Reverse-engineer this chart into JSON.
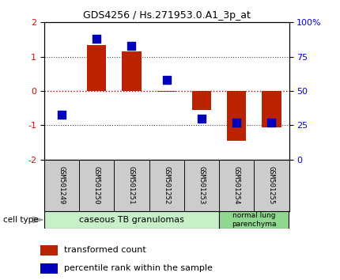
{
  "title": "GDS4256 / Hs.271953.0.A1_3p_at",
  "samples": [
    "GSM501249",
    "GSM501250",
    "GSM501251",
    "GSM501252",
    "GSM501253",
    "GSM501254",
    "GSM501255"
  ],
  "transformed_count": [
    0.0,
    1.35,
    1.15,
    -0.02,
    -0.55,
    -1.45,
    -1.05
  ],
  "percentile_rank": [
    33,
    88,
    83,
    58,
    30,
    27,
    27
  ],
  "ylim_left": [
    -2,
    2
  ],
  "ylim_right": [
    0,
    100
  ],
  "yticks_left": [
    -2,
    -1,
    0,
    1,
    2
  ],
  "yticks_right": [
    0,
    25,
    50,
    75,
    100
  ],
  "ytick_labels_right": [
    "0",
    "25",
    "50",
    "75",
    "100%"
  ],
  "bar_color": "#bb2200",
  "dot_color": "#0000bb",
  "bar_width": 0.55,
  "dot_size": 45,
  "group1_label": "caseous TB granulomas",
  "group2_label": "normal lung\nparenchyma",
  "group1_indices": [
    0,
    1,
    2,
    3,
    4
  ],
  "group2_indices": [
    5,
    6
  ],
  "group1_color": "#c8f0c8",
  "group2_color": "#90d890",
  "tick_label_area_color": "#cccccc",
  "cell_type_label": "cell type",
  "legend_tc": "transformed count",
  "legend_pr": "percentile rank within the sample",
  "hline_color_zero": "#cc0000",
  "dotted_line_color": "#444444",
  "title_fontsize": 9
}
